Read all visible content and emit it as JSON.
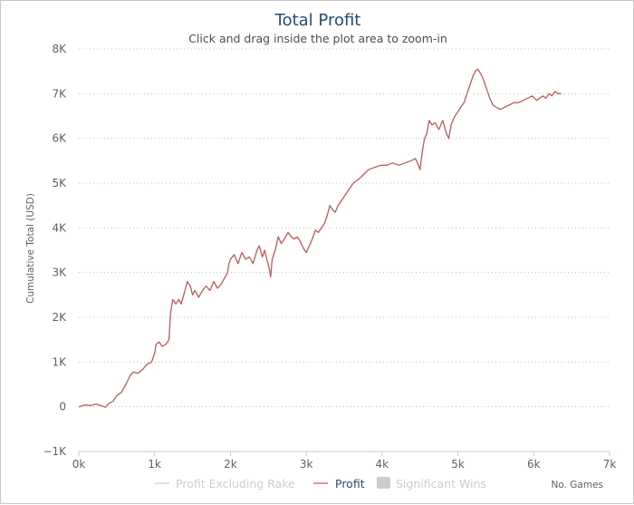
{
  "chart_data": {
    "type": "line",
    "title": "Total Profit",
    "subtitle": "Click and drag inside the plot area to zoom-in",
    "xlabel": "No. Games",
    "ylabel": "Cumulative Total (USD)",
    "xlim": [
      0,
      7000
    ],
    "ylim": [
      -1000,
      8000
    ],
    "x_ticks": [
      {
        "value": 0,
        "label": "0k"
      },
      {
        "value": 1000,
        "label": "1k"
      },
      {
        "value": 2000,
        "label": "2k"
      },
      {
        "value": 3000,
        "label": "3k"
      },
      {
        "value": 4000,
        "label": "4k"
      },
      {
        "value": 5000,
        "label": "5k"
      },
      {
        "value": 6000,
        "label": "6k"
      },
      {
        "value": 7000,
        "label": "7k"
      }
    ],
    "y_ticks": [
      {
        "value": -1000,
        "label": "−1K"
      },
      {
        "value": 0,
        "label": "0"
      },
      {
        "value": 1000,
        "label": "1K"
      },
      {
        "value": 2000,
        "label": "2K"
      },
      {
        "value": 3000,
        "label": "3K"
      },
      {
        "value": 4000,
        "label": "4K"
      },
      {
        "value": 5000,
        "label": "5K"
      },
      {
        "value": 6000,
        "label": "6K"
      },
      {
        "value": 7000,
        "label": "7K"
      },
      {
        "value": 8000,
        "label": "8K"
      }
    ],
    "grid": "horizontal dotted",
    "legend_position": "bottom",
    "series": [
      {
        "name": "Profit",
        "color": "#b85c5c",
        "visible": true,
        "points": [
          [
            0,
            0
          ],
          [
            80,
            40
          ],
          [
            150,
            30
          ],
          [
            230,
            60
          ],
          [
            300,
            20
          ],
          [
            350,
            -10
          ],
          [
            400,
            80
          ],
          [
            450,
            120
          ],
          [
            500,
            250
          ],
          [
            560,
            320
          ],
          [
            620,
            500
          ],
          [
            680,
            700
          ],
          [
            720,
            780
          ],
          [
            780,
            750
          ],
          [
            850,
            850
          ],
          [
            900,
            950
          ],
          [
            960,
            1000
          ],
          [
            1000,
            1200
          ],
          [
            1020,
            1400
          ],
          [
            1060,
            1450
          ],
          [
            1100,
            1350
          ],
          [
            1150,
            1400
          ],
          [
            1190,
            1500
          ],
          [
            1210,
            2100
          ],
          [
            1240,
            2400
          ],
          [
            1280,
            2300
          ],
          [
            1320,
            2400
          ],
          [
            1350,
            2300
          ],
          [
            1400,
            2600
          ],
          [
            1430,
            2800
          ],
          [
            1470,
            2700
          ],
          [
            1500,
            2500
          ],
          [
            1530,
            2600
          ],
          [
            1580,
            2450
          ],
          [
            1630,
            2600
          ],
          [
            1680,
            2700
          ],
          [
            1730,
            2600
          ],
          [
            1780,
            2800
          ],
          [
            1830,
            2650
          ],
          [
            1880,
            2750
          ],
          [
            1930,
            2900
          ],
          [
            1960,
            3000
          ],
          [
            1980,
            3200
          ],
          [
            2000,
            3300
          ],
          [
            2050,
            3400
          ],
          [
            2100,
            3200
          ],
          [
            2150,
            3450
          ],
          [
            2200,
            3300
          ],
          [
            2250,
            3350
          ],
          [
            2300,
            3200
          ],
          [
            2350,
            3500
          ],
          [
            2380,
            3600
          ],
          [
            2420,
            3350
          ],
          [
            2450,
            3500
          ],
          [
            2480,
            3300
          ],
          [
            2510,
            3100
          ],
          [
            2530,
            2900
          ],
          [
            2550,
            3300
          ],
          [
            2590,
            3500
          ],
          [
            2630,
            3800
          ],
          [
            2670,
            3650
          ],
          [
            2710,
            3750
          ],
          [
            2760,
            3900
          ],
          [
            2800,
            3800
          ],
          [
            2840,
            3750
          ],
          [
            2880,
            3800
          ],
          [
            2920,
            3700
          ],
          [
            2960,
            3550
          ],
          [
            3000,
            3450
          ],
          [
            3040,
            3600
          ],
          [
            3080,
            3750
          ],
          [
            3120,
            3950
          ],
          [
            3160,
            3900
          ],
          [
            3200,
            4000
          ],
          [
            3240,
            4100
          ],
          [
            3280,
            4300
          ],
          [
            3310,
            4500
          ],
          [
            3350,
            4400
          ],
          [
            3380,
            4350
          ],
          [
            3420,
            4500
          ],
          [
            3460,
            4600
          ],
          [
            3500,
            4700
          ],
          [
            3540,
            4800
          ],
          [
            3580,
            4900
          ],
          [
            3620,
            5000
          ],
          [
            3660,
            5050
          ],
          [
            3700,
            5100
          ],
          [
            3760,
            5200
          ],
          [
            3820,
            5300
          ],
          [
            3900,
            5350
          ],
          [
            3980,
            5400
          ],
          [
            4060,
            5400
          ],
          [
            4140,
            5450
          ],
          [
            4220,
            5400
          ],
          [
            4300,
            5450
          ],
          [
            4380,
            5500
          ],
          [
            4440,
            5550
          ],
          [
            4480,
            5400
          ],
          [
            4500,
            5300
          ],
          [
            4530,
            5700
          ],
          [
            4560,
            6000
          ],
          [
            4590,
            6100
          ],
          [
            4620,
            6400
          ],
          [
            4660,
            6300
          ],
          [
            4700,
            6350
          ],
          [
            4750,
            6200
          ],
          [
            4800,
            6400
          ],
          [
            4850,
            6100
          ],
          [
            4880,
            6000
          ],
          [
            4910,
            6300
          ],
          [
            4960,
            6500
          ],
          [
            5000,
            6600
          ],
          [
            5040,
            6700
          ],
          [
            5080,
            6800
          ],
          [
            5120,
            7000
          ],
          [
            5160,
            7200
          ],
          [
            5200,
            7400
          ],
          [
            5230,
            7500
          ],
          [
            5260,
            7550
          ],
          [
            5300,
            7450
          ],
          [
            5340,
            7300
          ],
          [
            5380,
            7100
          ],
          [
            5420,
            6900
          ],
          [
            5460,
            6750
          ],
          [
            5500,
            6700
          ],
          [
            5560,
            6650
          ],
          [
            5620,
            6700
          ],
          [
            5680,
            6750
          ],
          [
            5740,
            6800
          ],
          [
            5800,
            6800
          ],
          [
            5860,
            6850
          ],
          [
            5920,
            6900
          ],
          [
            5980,
            6950
          ],
          [
            6040,
            6850
          ],
          [
            6080,
            6900
          ],
          [
            6120,
            6950
          ],
          [
            6160,
            6900
          ],
          [
            6200,
            7000
          ],
          [
            6240,
            6950
          ],
          [
            6280,
            7050
          ],
          [
            6320,
            7000
          ],
          [
            6360,
            7000
          ]
        ]
      },
      {
        "name": "Profit Excluding Rake",
        "color": "#c9c9c9",
        "visible": false
      },
      {
        "name": "Significant Wins",
        "color": "#c9c9c9",
        "visible": false
      }
    ]
  },
  "legend": {
    "items": [
      {
        "label": "Profit Excluding Rake",
        "color": "#cccccc",
        "text_color": "#cccccc",
        "symbol": "line"
      },
      {
        "label": "Profit",
        "color": "#b85c5c",
        "text_color": "#274b6d",
        "symbol": "line"
      },
      {
        "label": "Significant Wins",
        "color": "#cccccc",
        "text_color": "#cccccc",
        "symbol": "box"
      }
    ]
  },
  "colors": {
    "title": "#274b6d",
    "grid": "#c0c0c0",
    "axis": "#c0d0e0",
    "profit_line": "#b85c5c"
  }
}
